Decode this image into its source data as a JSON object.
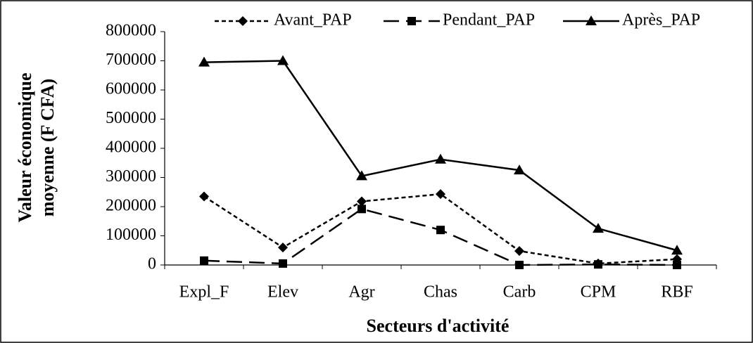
{
  "chart_data": {
    "type": "line",
    "xlabel": "Secteurs d'activité",
    "ylabel": [
      "Valeur économique",
      "moyenne (F CFA)"
    ],
    "categories": [
      "Expl_F",
      "Elev",
      "Agr",
      "Chas",
      "Carb",
      "CPM",
      "RBF"
    ],
    "series": [
      {
        "name": "Avant_PAP",
        "color": "#000000",
        "dash": "6,4",
        "marker": "diamond",
        "values": [
          235000,
          60000,
          218000,
          243000,
          48000,
          5000,
          20000
        ]
      },
      {
        "name": "Pendant_PAP",
        "color": "#000000",
        "dash": "22,10",
        "marker": "square",
        "values": [
          15000,
          5000,
          192000,
          120000,
          0,
          2000,
          0
        ]
      },
      {
        "name": "Après_PAP",
        "color": "#000000",
        "dash": "none",
        "marker": "triangle",
        "values": [
          695000,
          700000,
          305000,
          362000,
          325000,
          125000,
          50000
        ]
      }
    ],
    "ylim": [
      0,
      800000
    ],
    "yticks": [
      0,
      100000,
      200000,
      300000,
      400000,
      500000,
      600000,
      700000,
      800000
    ],
    "grid": false,
    "legend": "top"
  }
}
